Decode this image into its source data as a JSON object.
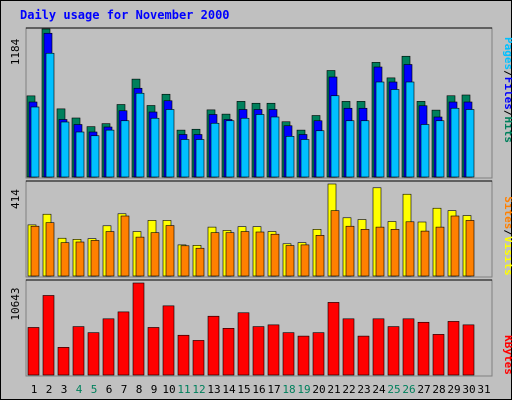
{
  "title": "Daily usage for November 2000",
  "colors": {
    "background": "#c0c0c0",
    "title": "#0000ff",
    "hits": "#00805c",
    "files": "#0000ff",
    "pages": "#00c0ff",
    "visits": "#ffff00",
    "sites": "#ff8000",
    "kbytes": "#ff0000",
    "weekend_label": "#00805c"
  },
  "chart_data": [
    {
      "type": "bar",
      "panel": "hits-files-pages",
      "ylabel_max": "1184",
      "ymax": 1184,
      "legend": [
        "Pages",
        "Files",
        "Hits"
      ],
      "legend_placement": "right",
      "categories": [
        "1",
        "2",
        "3",
        "4",
        "5",
        "6",
        "7",
        "8",
        "9",
        "10",
        "11",
        "12",
        "13",
        "14",
        "15",
        "16",
        "17",
        "18",
        "19",
        "20",
        "21",
        "22",
        "23",
        "24",
        "25",
        "26",
        "27",
        "28",
        "29",
        "30",
        "31"
      ],
      "series": [
        {
          "name": "Hits",
          "values": [
            649,
            1184,
            545,
            472,
            403,
            427,
            580,
            783,
            572,
            662,
            375,
            382,
            537,
            503,
            605,
            590,
            590,
            442,
            375,
            492,
            852,
            605,
            605,
            917,
            793,
            966,
            605,
            535,
            650,
            656,
            0
          ]
        },
        {
          "name": "Files",
          "values": [
            600,
            1150,
            460,
            420,
            360,
            400,
            530,
            710,
            520,
            610,
            340,
            340,
            500,
            460,
            540,
            540,
            540,
            410,
            340,
            450,
            800,
            550,
            550,
            880,
            760,
            900,
            570,
            480,
            600,
            600,
            0
          ]
        },
        {
          "name": "Pages",
          "values": [
            560,
            990,
            440,
            360,
            330,
            375,
            450,
            670,
            470,
            540,
            300,
            300,
            430,
            450,
            470,
            500,
            480,
            325,
            300,
            370,
            650,
            450,
            450,
            760,
            700,
            760,
            420,
            450,
            550,
            540,
            0
          ]
        }
      ]
    },
    {
      "type": "bar",
      "panel": "visits-sites",
      "ylabel_max": "414",
      "ymax": 414,
      "legend": [
        "Sites",
        "Visits"
      ],
      "legend_placement": "right",
      "categories": [
        "1",
        "2",
        "3",
        "4",
        "5",
        "6",
        "7",
        "8",
        "9",
        "10",
        "11",
        "12",
        "13",
        "14",
        "15",
        "16",
        "17",
        "18",
        "19",
        "20",
        "21",
        "22",
        "23",
        "24",
        "25",
        "26",
        "27",
        "28",
        "29",
        "30",
        "31"
      ],
      "series": [
        {
          "name": "Visits",
          "values": [
            230,
            278,
            170,
            165,
            168,
            226,
            280,
            200,
            250,
            250,
            140,
            138,
            220,
            205,
            222,
            222,
            200,
            145,
            150,
            210,
            414,
            262,
            254,
            397,
            245,
            368,
            243,
            305,
            294,
            272,
            0
          ]
        },
        {
          "name": "Sites",
          "values": [
            224,
            240,
            150,
            153,
            160,
            200,
            270,
            175,
            195,
            227,
            136,
            125,
            195,
            195,
            200,
            198,
            188,
            137,
            140,
            183,
            294,
            224,
            210,
            220,
            210,
            244,
            202,
            220,
            270,
            250,
            0
          ]
        }
      ]
    },
    {
      "type": "bar",
      "panel": "kbytes",
      "ylabel_max": "10643",
      "ymax": 10643,
      "legend": [
        "KBytes"
      ],
      "legend_placement": "right",
      "categories": [
        "1",
        "2",
        "3",
        "4",
        "5",
        "6",
        "7",
        "8",
        "9",
        "10",
        "11",
        "12",
        "13",
        "14",
        "15",
        "16",
        "17",
        "18",
        "19",
        "20",
        "21",
        "22",
        "23",
        "24",
        "25",
        "26",
        "27",
        "28",
        "29",
        "30",
        "31"
      ],
      "series": [
        {
          "name": "KBytes",
          "values": [
            5500,
            9200,
            3200,
            5600,
            4900,
            6500,
            7300,
            10643,
            5500,
            8000,
            4600,
            4000,
            6800,
            5400,
            7200,
            5600,
            5800,
            4900,
            4500,
            4900,
            8400,
            6500,
            4500,
            6500,
            5600,
            6500,
            6100,
            4700,
            6200,
            5800,
            0
          ]
        }
      ]
    }
  ],
  "day_labels": [
    "1",
    "2",
    "3",
    "4",
    "5",
    "6",
    "7",
    "8",
    "9",
    "10",
    "11",
    "12",
    "13",
    "14",
    "15",
    "16",
    "17",
    "18",
    "19",
    "20",
    "21",
    "22",
    "23",
    "24",
    "25",
    "26",
    "27",
    "28",
    "29",
    "30",
    "31"
  ],
  "weekend_days": [
    "4",
    "5",
    "11",
    "12",
    "18",
    "19",
    "25",
    "26"
  ]
}
